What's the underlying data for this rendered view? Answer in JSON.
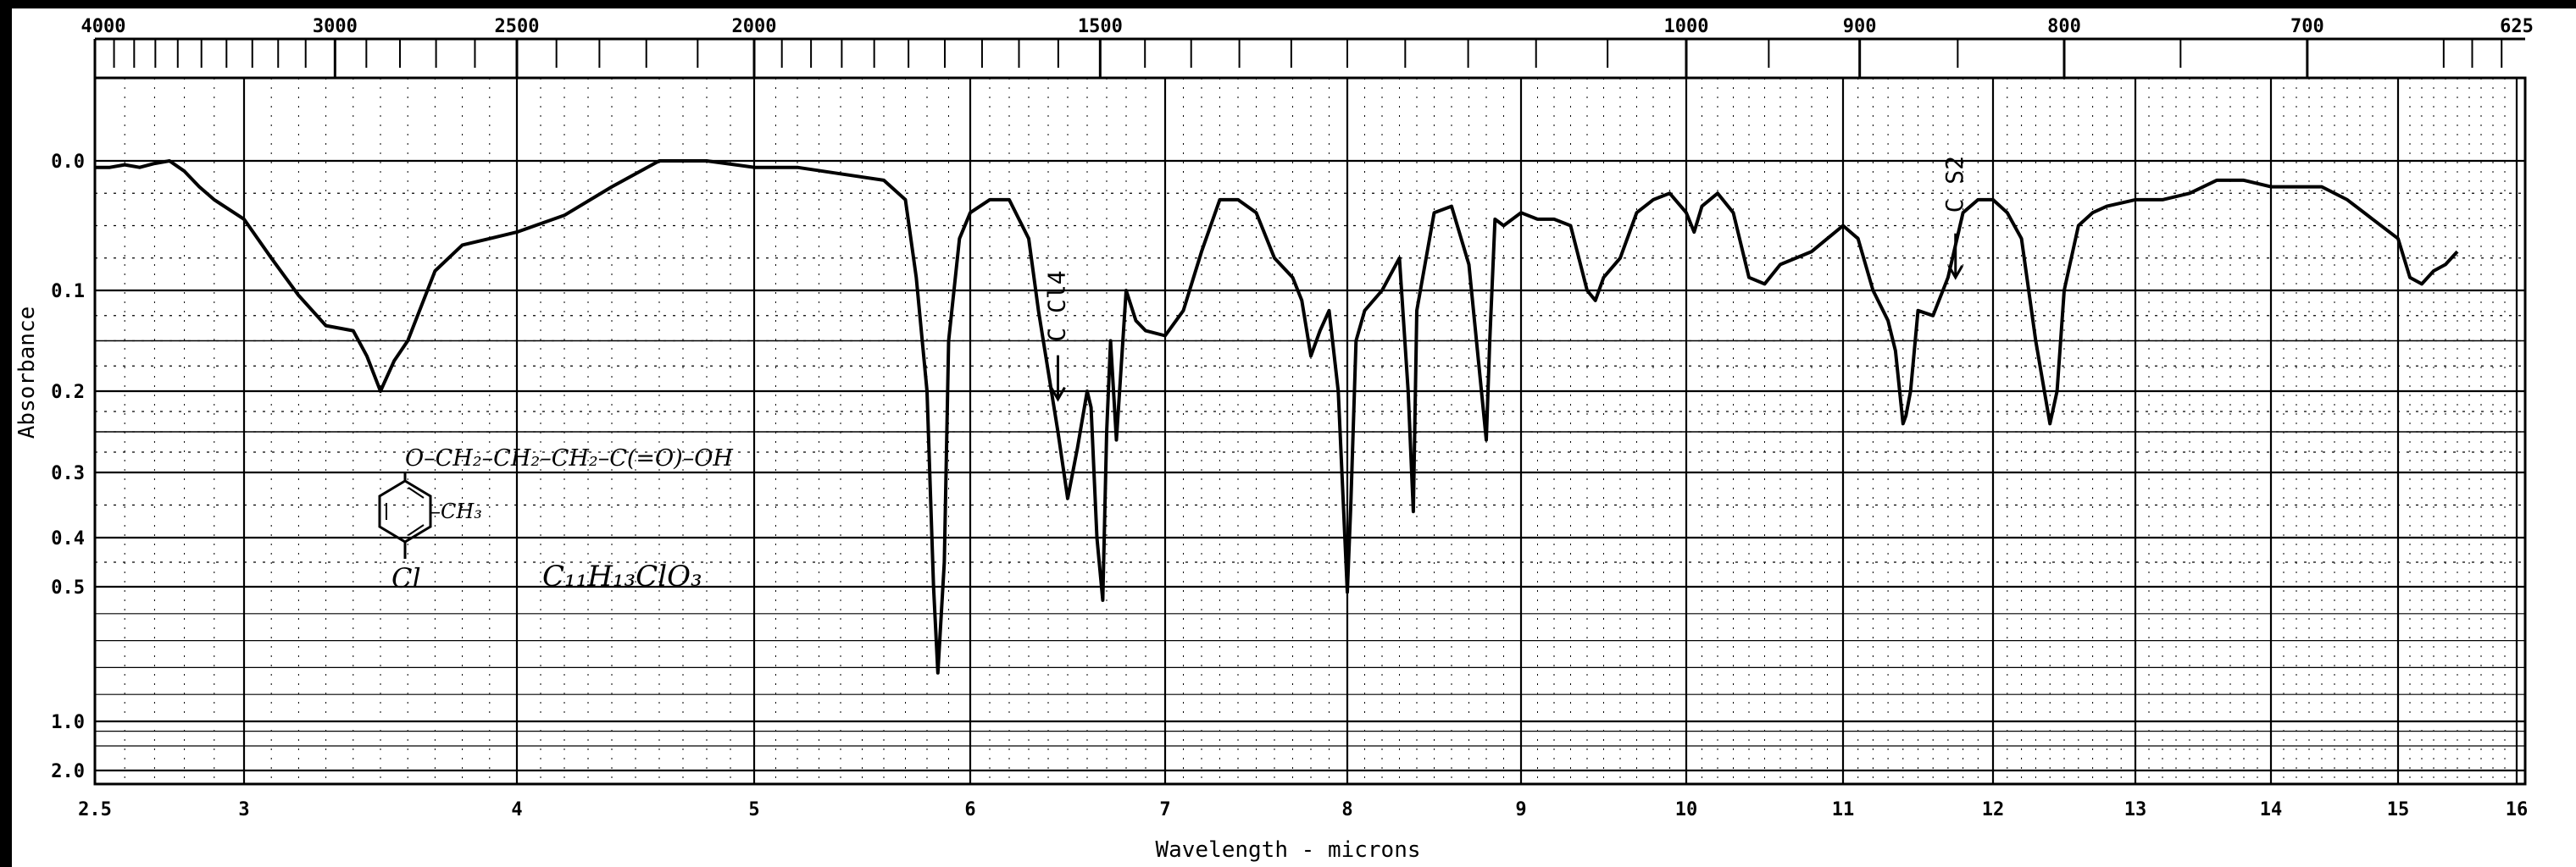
{
  "chart_data": {
    "type": "line",
    "title": "",
    "xlabel": "Wavelength - microns",
    "ylabel": "Absorbance",
    "x_scale": "linear-wavelength",
    "top_axis_scale": "wavenumber",
    "xlim": [
      2.5,
      16
    ],
    "grid": true,
    "x_ticks": [
      "2.5",
      "3",
      "4",
      "5",
      "6",
      "7",
      "8",
      "9",
      "10",
      "11",
      "12",
      "13",
      "14",
      "15",
      "16"
    ],
    "x_tick_values": [
      2.5,
      3,
      4,
      5,
      6,
      7,
      8,
      9,
      10,
      11,
      12,
      13,
      14,
      15,
      16
    ],
    "y_ticks": [
      "0.0",
      "0.1",
      "0.2",
      "0.3",
      "0.4",
      "0.5",
      "1.0",
      "2.0"
    ],
    "y_tick_values": [
      0.0,
      0.1,
      0.2,
      0.3,
      0.4,
      0.5,
      1.0,
      2.0
    ],
    "top_ticks": [
      "4000",
      "3000",
      "2500",
      "2000",
      "1500",
      "1000",
      "900",
      "800",
      "700",
      "625"
    ],
    "top_tick_values": [
      4000,
      3000,
      2500,
      2000,
      1500,
      1000,
      900,
      800,
      700,
      625
    ],
    "series": [
      {
        "color": "#000000",
        "x": [
          2.5,
          2.55,
          2.6,
          2.65,
          2.7,
          2.75,
          2.8,
          2.85,
          2.9,
          3.0,
          3.1,
          3.2,
          3.3,
          3.4,
          3.45,
          3.5,
          3.55,
          3.6,
          3.7,
          3.8,
          3.9,
          4.0,
          4.2,
          4.4,
          4.6,
          4.8,
          5.0,
          5.2,
          5.4,
          5.6,
          5.7,
          5.75,
          5.8,
          5.83,
          5.85,
          5.88,
          5.9,
          5.95,
          6.0,
          6.1,
          6.2,
          6.3,
          6.35,
          6.45,
          6.5,
          6.55,
          6.6,
          6.62,
          6.65,
          6.68,
          6.7,
          6.72,
          6.75,
          6.8,
          6.85,
          6.9,
          7.0,
          7.1,
          7.2,
          7.3,
          7.4,
          7.5,
          7.6,
          7.7,
          7.75,
          7.8,
          7.85,
          7.9,
          7.95,
          8.0,
          8.02,
          8.05,
          8.1,
          8.2,
          8.3,
          8.35,
          8.38,
          8.4,
          8.5,
          8.6,
          8.7,
          8.8,
          8.82,
          8.85,
          8.9,
          9.0,
          9.1,
          9.2,
          9.3,
          9.4,
          9.45,
          9.5,
          9.6,
          9.7,
          9.8,
          9.9,
          10.0,
          10.05,
          10.1,
          10.2,
          10.3,
          10.4,
          10.5,
          10.6,
          10.8,
          11.0,
          11.1,
          11.2,
          11.3,
          11.35,
          11.4,
          11.42,
          11.45,
          11.5,
          11.6,
          11.7,
          11.8,
          11.9,
          12.0,
          12.1,
          12.2,
          12.3,
          12.4,
          12.45,
          12.5,
          12.6,
          12.7,
          12.8,
          13.0,
          13.2,
          13.4,
          13.6,
          13.8,
          14.0,
          14.2,
          14.4,
          14.6,
          14.8,
          15.0,
          15.1,
          15.2,
          15.3,
          15.4,
          15.5
        ],
        "y": [
          0.005,
          0.005,
          0.003,
          0.005,
          0.002,
          0.0,
          0.008,
          0.02,
          0.03,
          0.045,
          0.075,
          0.105,
          0.135,
          0.14,
          0.165,
          0.2,
          0.17,
          0.15,
          0.085,
          0.065,
          0.06,
          0.055,
          0.042,
          0.02,
          0.0,
          0.0,
          0.005,
          0.005,
          0.01,
          0.015,
          0.03,
          0.09,
          0.2,
          0.5,
          0.82,
          0.45,
          0.15,
          0.06,
          0.04,
          0.03,
          0.03,
          0.06,
          0.12,
          0.25,
          0.34,
          0.27,
          0.2,
          0.22,
          0.4,
          0.55,
          0.25,
          0.15,
          0.26,
          0.1,
          0.13,
          0.14,
          0.145,
          0.12,
          0.07,
          0.03,
          0.03,
          0.04,
          0.075,
          0.09,
          0.11,
          0.165,
          0.14,
          0.12,
          0.2,
          0.52,
          0.35,
          0.15,
          0.12,
          0.1,
          0.075,
          0.2,
          0.36,
          0.12,
          0.04,
          0.035,
          0.08,
          0.26,
          0.15,
          0.045,
          0.05,
          0.04,
          0.045,
          0.045,
          0.05,
          0.1,
          0.11,
          0.09,
          0.075,
          0.04,
          0.03,
          0.025,
          0.04,
          0.055,
          0.035,
          0.025,
          0.04,
          0.09,
          0.095,
          0.08,
          0.07,
          0.05,
          0.06,
          0.1,
          0.13,
          0.16,
          0.24,
          0.23,
          0.2,
          0.12,
          0.125,
          0.09,
          0.04,
          0.03,
          0.03,
          0.04,
          0.06,
          0.15,
          0.24,
          0.2,
          0.1,
          0.05,
          0.04,
          0.035,
          0.03,
          0.03,
          0.025,
          0.015,
          0.015,
          0.02,
          0.02,
          0.02,
          0.03,
          0.045,
          0.06,
          0.09,
          0.095,
          0.085,
          0.08,
          0.07
        ]
      }
    ],
    "annotations": [
      {
        "text": "C Cl4",
        "x": 6.45,
        "y": 0.21
      },
      {
        "text": "C S2",
        "x": 11.75,
        "y": 0.09
      }
    ]
  },
  "handwriting": {
    "structure": "O–CH₂–CH₂–CH₂–C(=O)–OH",
    "methyl": "–CH₃",
    "chloro": "Cl",
    "formula": "C₁₁H₁₃ClO₃"
  }
}
